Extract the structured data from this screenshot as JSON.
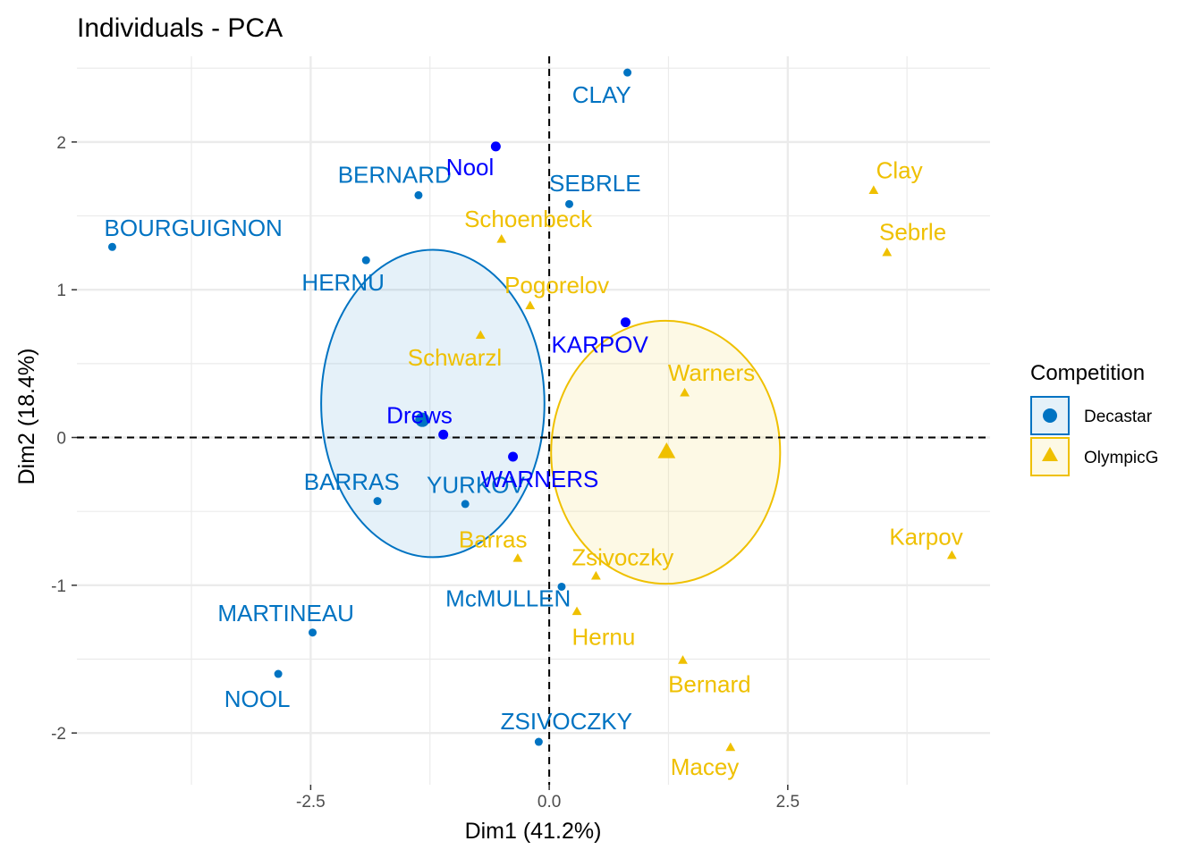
{
  "chart_data": {
    "type": "scatter",
    "title": "Individuals - PCA",
    "xlabel": "Dim1 (41.2%)",
    "ylabel": "Dim2 (18.4%)",
    "xlim": [
      -4.95,
      4.62
    ],
    "ylim": [
      -2.35,
      2.58
    ],
    "x_ticks": [
      -2.5,
      0.0,
      2.5
    ],
    "x_tick_labels": [
      "-2.5",
      "0.0",
      "2.5"
    ],
    "y_ticks": [
      -2,
      -1,
      0,
      1,
      2
    ],
    "y_tick_labels": [
      "-2",
      "-1",
      "0",
      "1",
      "2"
    ],
    "grid": true,
    "reference_lines": {
      "x": 0,
      "y": 0,
      "style": "dashed"
    },
    "legend": {
      "title": "Competition",
      "position": "right",
      "entries": [
        {
          "label": "Decastar",
          "color": "#0073C2",
          "shape": "circle"
        },
        {
          "label": "OlympicG",
          "color": "#EFC000",
          "shape": "triangle"
        }
      ]
    },
    "series": [
      {
        "name": "Decastar",
        "color": "#0073C2",
        "shape": "circle",
        "points": [
          {
            "label": "CLAY",
            "x": 0.82,
            "y": 2.47,
            "lx": 0.55,
            "ly": 2.32
          },
          {
            "label": "SEBRLE",
            "x": 0.21,
            "y": 1.58,
            "lx": 0.48,
            "ly": 1.72
          },
          {
            "label": "BERNARD",
            "x": -1.37,
            "y": 1.64,
            "lx": -1.62,
            "ly": 1.78
          },
          {
            "label": "BOURGUIGNON",
            "x": -4.58,
            "y": 1.29,
            "lx": -3.73,
            "ly": 1.42
          },
          {
            "label": "HERNU",
            "x": -1.92,
            "y": 1.2,
            "lx": -2.16,
            "ly": 1.05
          },
          {
            "label": "BARRAS",
            "x": -1.8,
            "y": -0.43,
            "lx": -2.07,
            "ly": -0.3
          },
          {
            "label": "YURKOV",
            "x": -0.88,
            "y": -0.45,
            "lx": -0.77,
            "ly": -0.32
          },
          {
            "label": "McMULLEN",
            "x": 0.13,
            "y": -1.01,
            "lx": -0.43,
            "ly": -1.09
          },
          {
            "label": "MARTINEAU",
            "x": -2.48,
            "y": -1.32,
            "lx": -2.76,
            "ly": -1.19
          },
          {
            "label": "NOOL",
            "x": -2.84,
            "y": -1.6,
            "lx": -3.06,
            "ly": -1.77
          },
          {
            "label": "ZSIVOCZKY",
            "x": -0.11,
            "y": -2.06,
            "lx": 0.18,
            "ly": -1.92
          }
        ]
      },
      {
        "name": "OlympicG",
        "color": "#EFC000",
        "shape": "triangle",
        "points": [
          {
            "label": "Clay",
            "x": 3.4,
            "y": 1.67,
            "lx": 3.67,
            "ly": 1.81
          },
          {
            "label": "Sebrle",
            "x": 3.54,
            "y": 1.25,
            "lx": 3.81,
            "ly": 1.39
          },
          {
            "label": "Schoenbeck",
            "x": -0.5,
            "y": 1.34,
            "lx": -0.22,
            "ly": 1.48
          },
          {
            "label": "Pogorelov",
            "x": -0.2,
            "y": 0.89,
            "lx": 0.08,
            "ly": 1.03
          },
          {
            "label": "Schwarzl",
            "x": -0.72,
            "y": 0.69,
            "lx": -0.99,
            "ly": 0.54
          },
          {
            "label": "Warners",
            "x": 1.42,
            "y": 0.3,
            "lx": 1.7,
            "ly": 0.44
          },
          {
            "label": "Karpov",
            "x": 4.22,
            "y": -0.8,
            "lx": 3.95,
            "ly": -0.67
          },
          {
            "label": "Barras",
            "x": -0.33,
            "y": -0.82,
            "lx": -0.59,
            "ly": -0.69
          },
          {
            "label": "Zsivoczky",
            "x": 0.49,
            "y": -0.94,
            "lx": 0.77,
            "ly": -0.81
          },
          {
            "label": "Hernu",
            "x": 0.29,
            "y": -1.18,
            "lx": 0.57,
            "ly": -1.35
          },
          {
            "label": "Bernard",
            "x": 1.4,
            "y": -1.51,
            "lx": 1.68,
            "ly": -1.67
          },
          {
            "label": "Macey",
            "x": 1.9,
            "y": -2.1,
            "lx": 1.63,
            "ly": -2.23
          }
        ]
      },
      {
        "name": "",
        "color": "#0000FF",
        "shape": "circle",
        "points": [
          {
            "label": "Nool",
            "x": -0.56,
            "y": 1.97,
            "lx": -0.83,
            "ly": 1.83
          },
          {
            "label": "KARPOV",
            "x": 0.8,
            "y": 0.78,
            "lx": 0.53,
            "ly": 0.63
          },
          {
            "label": "Drews",
            "x": -1.11,
            "y": 0.02,
            "lx": -1.36,
            "ly": 0.15
          },
          {
            "label": "WARNERS",
            "x": -0.38,
            "y": -0.13,
            "lx": -0.1,
            "ly": -0.28
          }
        ]
      }
    ],
    "group_centers": [
      {
        "name": "Decastar",
        "x": -1.33,
        "y": 0.12
      },
      {
        "name": "OlympicG",
        "x": 1.23,
        "y": -0.1
      }
    ],
    "ellipses": [
      {
        "name": "Decastar",
        "cx": -1.22,
        "cy": 0.23,
        "rx": 1.17,
        "ry": 1.04
      },
      {
        "name": "OlympicG",
        "cx": 1.22,
        "cy": -0.1,
        "rx": 1.2,
        "ry": 0.89
      }
    ]
  }
}
